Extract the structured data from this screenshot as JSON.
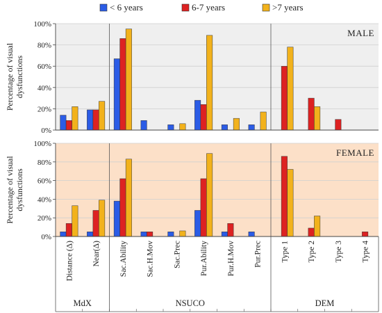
{
  "chart_data": {
    "type": "bar",
    "legend_position": "top",
    "series_names": [
      "< 6 years",
      "6-7 years",
      ">7 years"
    ],
    "colors": [
      "#2b5ce6",
      "#dd2222",
      "#f2b21c"
    ],
    "ylabel": [
      "Percentage of visual",
      "dysfunctions"
    ],
    "y_ticks": [
      "0%",
      "20%",
      "40%",
      "60%",
      "80%",
      "100%"
    ],
    "ylim": [
      0,
      100
    ],
    "categories": [
      "Distance (Δ)",
      "Near(Δ)",
      "Sac.Ability",
      "Sac.H.Mov",
      "Sac.Prec",
      "Pur.Ability",
      "Pur.H.Mov",
      "Pur.Prec",
      "Type 1",
      "Type 2",
      "Type 3",
      "Type 4"
    ],
    "groups": [
      {
        "name": "MdX",
        "categories": [
          "Distance (Δ)",
          "Near(Δ)"
        ]
      },
      {
        "name": "NSUCO",
        "categories": [
          "Sac.Ability",
          "Sac.H.Mov",
          "Sac.Prec",
          "Pur.Ability",
          "Pur.H.Mov",
          "Pur.Prec"
        ]
      },
      {
        "name": "DEM",
        "categories": [
          "Type 1",
          "Type 2",
          "Type 3",
          "Type 4"
        ]
      }
    ],
    "panels": [
      {
        "label": "MALE",
        "background": "#efefef",
        "series": [
          {
            "name": "< 6 years",
            "values": [
              14,
              19,
              67,
              9,
              5,
              28,
              5,
              5,
              0,
              0,
              0,
              0
            ]
          },
          {
            "name": "6-7 years",
            "values": [
              9,
              19,
              86,
              0,
              0,
              24,
              0,
              0,
              60,
              30,
              10,
              0
            ]
          },
          {
            "name": ">7 years",
            "values": [
              22,
              27,
              95,
              0,
              6,
              89,
              11,
              17,
              78,
              22,
              0,
              0
            ]
          }
        ]
      },
      {
        "label": "FEMALE",
        "background": "#fce0c8",
        "series": [
          {
            "name": "< 6 years",
            "values": [
              5,
              5,
              38,
              5,
              5,
              28,
              5,
              5,
              0,
              0,
              0,
              0
            ]
          },
          {
            "name": "6-7 years",
            "values": [
              14,
              28,
              62,
              5,
              0,
              62,
              14,
              0,
              86,
              9,
              0,
              5
            ]
          },
          {
            "name": ">7 years",
            "values": [
              33,
              39,
              83,
              0,
              6,
              89,
              0,
              0,
              72,
              22,
              0,
              0
            ]
          }
        ]
      }
    ]
  }
}
